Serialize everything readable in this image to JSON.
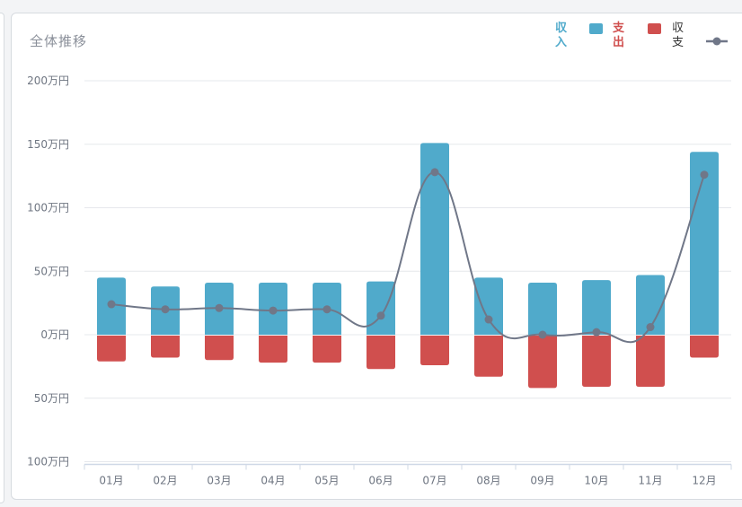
{
  "panel": {
    "title": "全体推移"
  },
  "legend": [
    {
      "name": "収入",
      "color": "#50aacb"
    },
    {
      "name": "支出",
      "color": "#d04f4e"
    },
    {
      "name": "収支",
      "color": "#707788"
    }
  ],
  "chart_data": {
    "type": "bar",
    "title": "全体推移",
    "categories": [
      "01月",
      "02月",
      "03月",
      "04月",
      "05月",
      "06月",
      "07月",
      "08月",
      "09月",
      "10月",
      "11月",
      "12月"
    ],
    "series": [
      {
        "name": "収入",
        "type": "bar",
        "color": "#50aacb",
        "values": [
          45,
          38,
          41,
          41,
          41,
          42,
          151,
          45,
          41,
          43,
          47,
          144
        ]
      },
      {
        "name": "支出",
        "type": "bar",
        "color": "#d04f4e",
        "values": [
          -21,
          -18,
          -20,
          -22,
          -22,
          -27,
          -24,
          -33,
          -42,
          -41,
          -41,
          -18
        ]
      },
      {
        "name": "収支",
        "type": "line",
        "color": "#707788",
        "values": [
          24,
          20,
          21,
          19,
          20,
          15,
          128,
          12,
          0,
          2,
          6,
          126
        ]
      }
    ],
    "y_ticks": [
      "200万円",
      "150万円",
      "100万円",
      "50万円",
      "0万円",
      "50万円",
      "100万円"
    ],
    "ylim": [
      -100,
      200
    ],
    "grid": true,
    "legend_position": "top-right"
  }
}
